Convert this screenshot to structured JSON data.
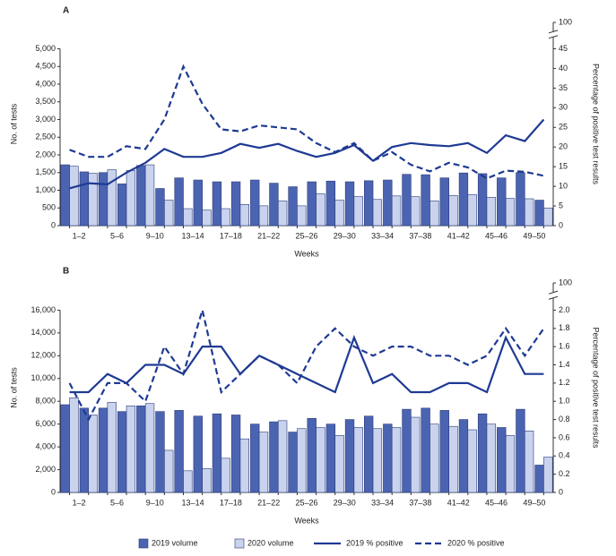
{
  "chart_data": [
    {
      "type": "bar",
      "panel": "A",
      "y_label": "No. of tests",
      "y2_label": "Percentage of positive test results",
      "x_label": "Weeks",
      "categories": [
        "1–2",
        null,
        "5–6",
        null,
        "9–10",
        null,
        "13–14",
        null,
        "17–18",
        null,
        "21–22",
        null,
        "25–26",
        null,
        "29–30",
        null,
        "33–34",
        null,
        "37–38",
        null,
        "41–42",
        null,
        "45–46",
        null,
        "49–50",
        null
      ],
      "ylim": [
        0,
        5000
      ],
      "yticks": [
        0,
        500,
        {
          "value": 1000,
          "label": "1,000"
        },
        {
          "value": 1500,
          "label": "1,500"
        },
        {
          "value": 2000,
          "label": "2,000"
        },
        {
          "value": 2500,
          "label": "2,500"
        },
        {
          "value": 3000,
          "label": "3,000"
        },
        {
          "value": 3500,
          "label": "3,500"
        },
        {
          "value": 4000,
          "label": "4,000"
        },
        {
          "value": 4500,
          "label": "4,500"
        },
        {
          "value": 5000,
          "label": "5,000"
        }
      ],
      "y2lim": [
        0,
        100
      ],
      "y2ticks": [
        0,
        5,
        10,
        15,
        20,
        25,
        30,
        35,
        40,
        45,
        100
      ],
      "y2_axis_break": true,
      "series": [
        {
          "name": "2019 volume",
          "type": "bar",
          "color": "#4b64b2",
          "values": [
            1720,
            1520,
            1500,
            1180,
            1700,
            1050,
            1350,
            1290,
            1240,
            1240,
            1290,
            1200,
            1100,
            1240,
            1260,
            1240,
            1270,
            1290,
            1450,
            1440,
            1350,
            1490,
            1470,
            1350,
            1500,
            720
          ]
        },
        {
          "name": "2020 volume",
          "type": "bar",
          "color": "#c9d3ee",
          "values": [
            1680,
            1480,
            1580,
            1560,
            1720,
            720,
            480,
            440,
            480,
            600,
            560,
            700,
            560,
            900,
            720,
            820,
            740,
            840,
            820,
            700,
            850,
            880,
            800,
            770,
            760,
            500
          ]
        },
        {
          "name": "2019 % positive",
          "type": "line",
          "axis": "y2",
          "color": "#1f3a93",
          "dashed": false,
          "values": [
            9.5,
            10.8,
            10.5,
            13.5,
            16,
            19.5,
            17.5,
            17.5,
            18.5,
            20.8,
            19.8,
            20.8,
            19,
            17.5,
            18.5,
            20.5,
            16.5,
            20,
            21,
            20.5,
            20.2,
            21,
            18.5,
            23,
            21.5,
            27
          ]
        },
        {
          "name": "2020 % positive",
          "type": "line",
          "axis": "y2",
          "color": "#1f3a93",
          "dashed": true,
          "values": [
            19.3,
            17.5,
            17.5,
            20.2,
            19.5,
            27,
            40.5,
            31,
            24.5,
            24,
            25.5,
            25,
            24.5,
            21,
            18.7,
            21,
            16.5,
            18.7,
            15.5,
            13.8,
            16,
            14.8,
            12,
            14,
            13.7,
            12.7
          ]
        }
      ]
    },
    {
      "type": "bar",
      "panel": "B",
      "y_label": "No. of tests",
      "y2_label": "Percentage of positive test results",
      "x_label": "Weeks",
      "categories": [
        "1–2",
        null,
        "5–6",
        null,
        "9–10",
        null,
        "13–14",
        null,
        "17–18",
        null,
        "21–22",
        null,
        "25–26",
        null,
        "29–30",
        null,
        "33–34",
        null,
        "37–38",
        null,
        "41–42",
        null,
        "45–46",
        null,
        "49–50",
        null
      ],
      "ylim": [
        0,
        16000
      ],
      "yticks": [
        0,
        {
          "value": 2000,
          "label": "2,000"
        },
        {
          "value": 4000,
          "label": "4,000"
        },
        {
          "value": 6000,
          "label": "6,000"
        },
        {
          "value": 8000,
          "label": "8,000"
        },
        {
          "value": 10000,
          "label": "10,000"
        },
        {
          "value": 12000,
          "label": "12,000"
        },
        {
          "value": 14000,
          "label": "14,000"
        },
        {
          "value": 16000,
          "label": "16,000"
        }
      ],
      "y2lim": [
        0,
        100
      ],
      "y2ticks": [
        0,
        0.2,
        0.4,
        0.6,
        0.8,
        {
          "value": 1,
          "label": "1.0"
        },
        1.2,
        1.4,
        1.6,
        1.8,
        {
          "value": 2,
          "label": "2.0"
        },
        100
      ],
      "y2_axis_break": true,
      "series": [
        {
          "type": "bar",
          "color": "#4b64b2",
          "values": [
            7700,
            7400,
            7400,
            7100,
            7600,
            7100,
            7200,
            6700,
            6900,
            6800,
            6000,
            6200,
            5300,
            6500,
            6000,
            6400,
            6700,
            6000,
            7300,
            7400,
            7200,
            6400,
            6900,
            5700,
            7300,
            2400
          ]
        },
        {
          "type": "bar",
          "color": "#c9d3ee",
          "values": [
            8300,
            6800,
            7900,
            7600,
            7800,
            3700,
            1900,
            2100,
            3000,
            4700,
            5300,
            6300,
            5600,
            5700,
            5000,
            5700,
            5600,
            5700,
            6600,
            6000,
            5800,
            5500,
            6000,
            5000,
            5400,
            3100
          ]
        },
        {
          "type": "line",
          "axis": "y2",
          "color": "#1f3a93",
          "dashed": false,
          "values": [
            1.1,
            1.1,
            1.3,
            1.2,
            1.4,
            1.4,
            1.3,
            1.6,
            1.6,
            1.3,
            1.5,
            1.4,
            1.3,
            1.2,
            1.1,
            1.7,
            1.2,
            1.3,
            1.1,
            1.1,
            1.2,
            1.2,
            1.1,
            1.7,
            1.3,
            1.3
          ]
        },
        {
          "type": "line",
          "axis": "y2",
          "color": "#1f3a93",
          "dashed": true,
          "values": [
            1.2,
            0.8,
            1.2,
            1.2,
            1.0,
            1.6,
            1.3,
            2.0,
            1.1,
            1.3,
            1.5,
            1.4,
            1.2,
            1.6,
            1.8,
            1.6,
            1.5,
            1.6,
            1.6,
            1.5,
            1.5,
            1.4,
            1.5,
            1.8,
            1.5,
            1.8
          ]
        }
      ]
    }
  ]
}
